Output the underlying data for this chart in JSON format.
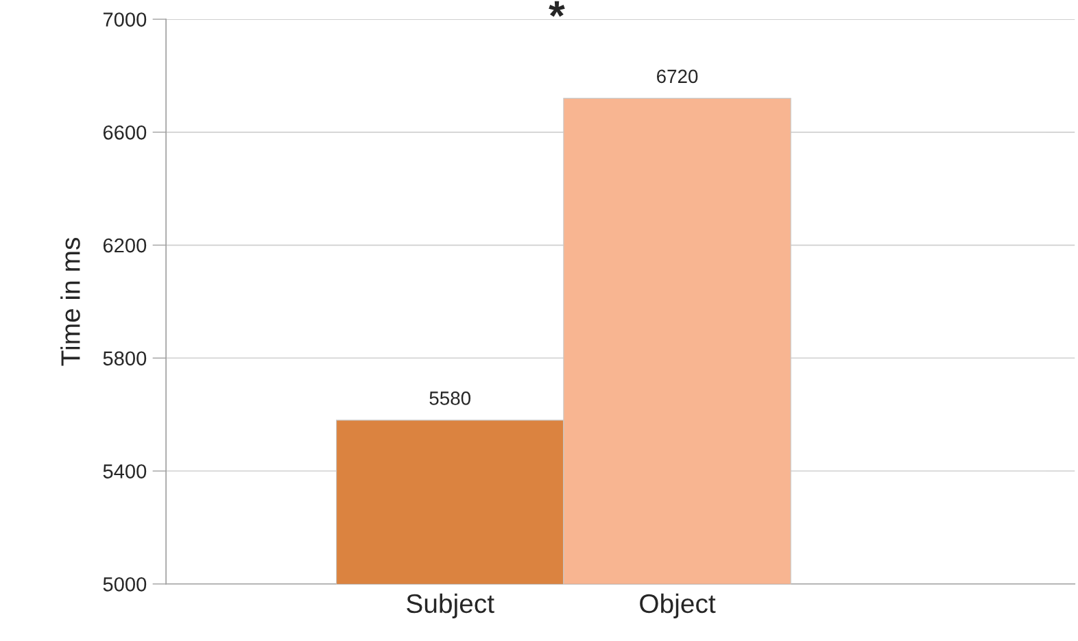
{
  "chart_data": {
    "type": "bar",
    "ylabel": "Time in ms",
    "categories": [
      "Subject",
      "Object"
    ],
    "values": [
      5580,
      6720
    ],
    "colors": [
      "#db8340",
      "#f8b591"
    ],
    "ylim": [
      5000,
      7000
    ],
    "yticks": [
      5000,
      5400,
      5800,
      6200,
      6600,
      7000
    ],
    "grid": "y",
    "data_labels": true,
    "annotations": [
      "*"
    ]
  }
}
